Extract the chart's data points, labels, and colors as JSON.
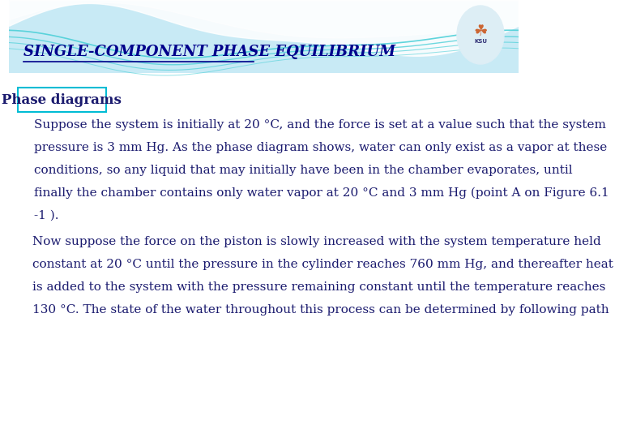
{
  "title": "SINGLE-COMPONENT PHASE EQUILIBRIUM",
  "subtitle_box": "Phase diagrams",
  "paragraph1_lines": [
    "Suppose the system is initially at 20 °C, and the force is set at a value such that the system",
    "pressure is 3 mm Hg. As the phase diagram shows, water can only exist as a vapor at these",
    "conditions, so any liquid that may initially have been in the chamber evaporates, until",
    "finally the chamber contains only water vapor at 20 °C and 3 mm Hg (point A on Figure 6.1",
    "-1 )."
  ],
  "paragraph2_lines": [
    "Now suppose the force on the piston is slowly increased with the system temperature held",
    "constant at 20 °C until the pressure in the cylinder reaches 760 mm Hg, and thereafter heat",
    "is added to the system with the pressure remaining constant until the temperature reaches",
    "130 °C. The state of the water throughout this process can be determined by following path"
  ],
  "bg_color": "#ffffff",
  "header_bg_color": "#c8eaf5",
  "title_color": "#00008B",
  "title_fontsize": 13,
  "subtitle_color": "#1a1a6e",
  "subtitle_fontsize": 12,
  "text_color": "#1a1a6e",
  "text_fontsize": 11,
  "box_edge_color": "#00bcd4",
  "wave_color": "#4dd0d8"
}
